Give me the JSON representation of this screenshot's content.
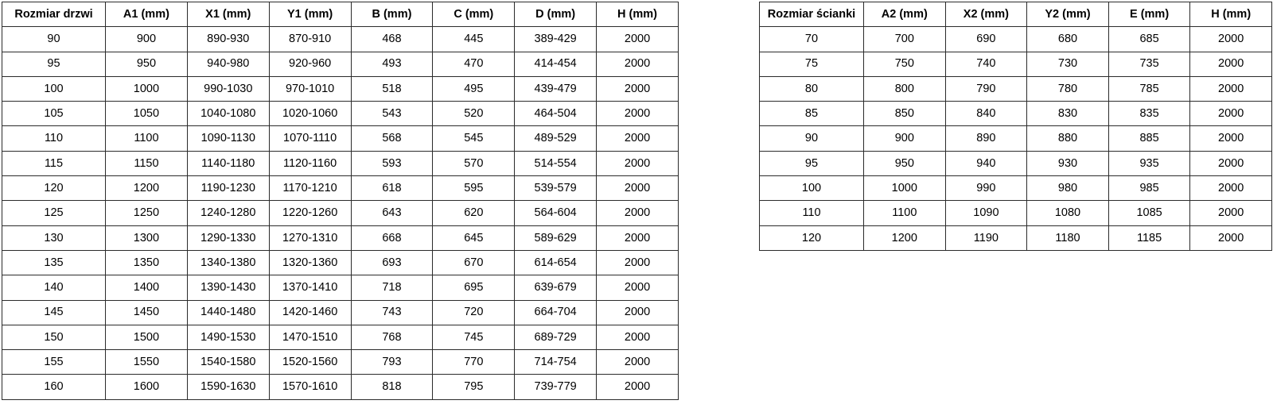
{
  "page": {
    "background_color": "#ffffff",
    "border_color": "#2b2b2b",
    "text_color": "#000000"
  },
  "door_table": {
    "title_column": "Rozmiar drzwi",
    "headers": [
      "Rozmiar drzwi",
      "A1 (mm)",
      "X1 (mm)",
      "Y1 (mm)",
      "B (mm)",
      "C (mm)",
      "D (mm)",
      "H (mm)"
    ],
    "rows": [
      [
        "90",
        "900",
        "890-930",
        "870-910",
        "468",
        "445",
        "389-429",
        "2000"
      ],
      [
        "95",
        "950",
        "940-980",
        "920-960",
        "493",
        "470",
        "414-454",
        "2000"
      ],
      [
        "100",
        "1000",
        "990-1030",
        "970-1010",
        "518",
        "495",
        "439-479",
        "2000"
      ],
      [
        "105",
        "1050",
        "1040-1080",
        "1020-1060",
        "543",
        "520",
        "464-504",
        "2000"
      ],
      [
        "110",
        "1100",
        "1090-1130",
        "1070-1110",
        "568",
        "545",
        "489-529",
        "2000"
      ],
      [
        "115",
        "1150",
        "1140-1180",
        "1120-1160",
        "593",
        "570",
        "514-554",
        "2000"
      ],
      [
        "120",
        "1200",
        "1190-1230",
        "1170-1210",
        "618",
        "595",
        "539-579",
        "2000"
      ],
      [
        "125",
        "1250",
        "1240-1280",
        "1220-1260",
        "643",
        "620",
        "564-604",
        "2000"
      ],
      [
        "130",
        "1300",
        "1290-1330",
        "1270-1310",
        "668",
        "645",
        "589-629",
        "2000"
      ],
      [
        "135",
        "1350",
        "1340-1380",
        "1320-1360",
        "693",
        "670",
        "614-654",
        "2000"
      ],
      [
        "140",
        "1400",
        "1390-1430",
        "1370-1410",
        "718",
        "695",
        "639-679",
        "2000"
      ],
      [
        "145",
        "1450",
        "1440-1480",
        "1420-1460",
        "743",
        "720",
        "664-704",
        "2000"
      ],
      [
        "150",
        "1500",
        "1490-1530",
        "1470-1510",
        "768",
        "745",
        "689-729",
        "2000"
      ],
      [
        "155",
        "1550",
        "1540-1580",
        "1520-1560",
        "793",
        "770",
        "714-754",
        "2000"
      ],
      [
        "160",
        "1600",
        "1590-1630",
        "1570-1610",
        "818",
        "795",
        "739-779",
        "2000"
      ]
    ]
  },
  "wall_table": {
    "title_column": "Rozmiar ścianki",
    "headers": [
      "Rozmiar ścianki",
      "A2 (mm)",
      "X2 (mm)",
      "Y2 (mm)",
      "E (mm)",
      "H (mm)"
    ],
    "rows": [
      [
        "70",
        "700",
        "690",
        "680",
        "685",
        "2000"
      ],
      [
        "75",
        "750",
        "740",
        "730",
        "735",
        "2000"
      ],
      [
        "80",
        "800",
        "790",
        "780",
        "785",
        "2000"
      ],
      [
        "85",
        "850",
        "840",
        "830",
        "835",
        "2000"
      ],
      [
        "90",
        "900",
        "890",
        "880",
        "885",
        "2000"
      ],
      [
        "95",
        "950",
        "940",
        "930",
        "935",
        "2000"
      ],
      [
        "100",
        "1000",
        "990",
        "980",
        "985",
        "2000"
      ],
      [
        "110",
        "1100",
        "1090",
        "1080",
        "1085",
        "2000"
      ],
      [
        "120",
        "1200",
        "1190",
        "1180",
        "1185",
        "2000"
      ]
    ]
  }
}
